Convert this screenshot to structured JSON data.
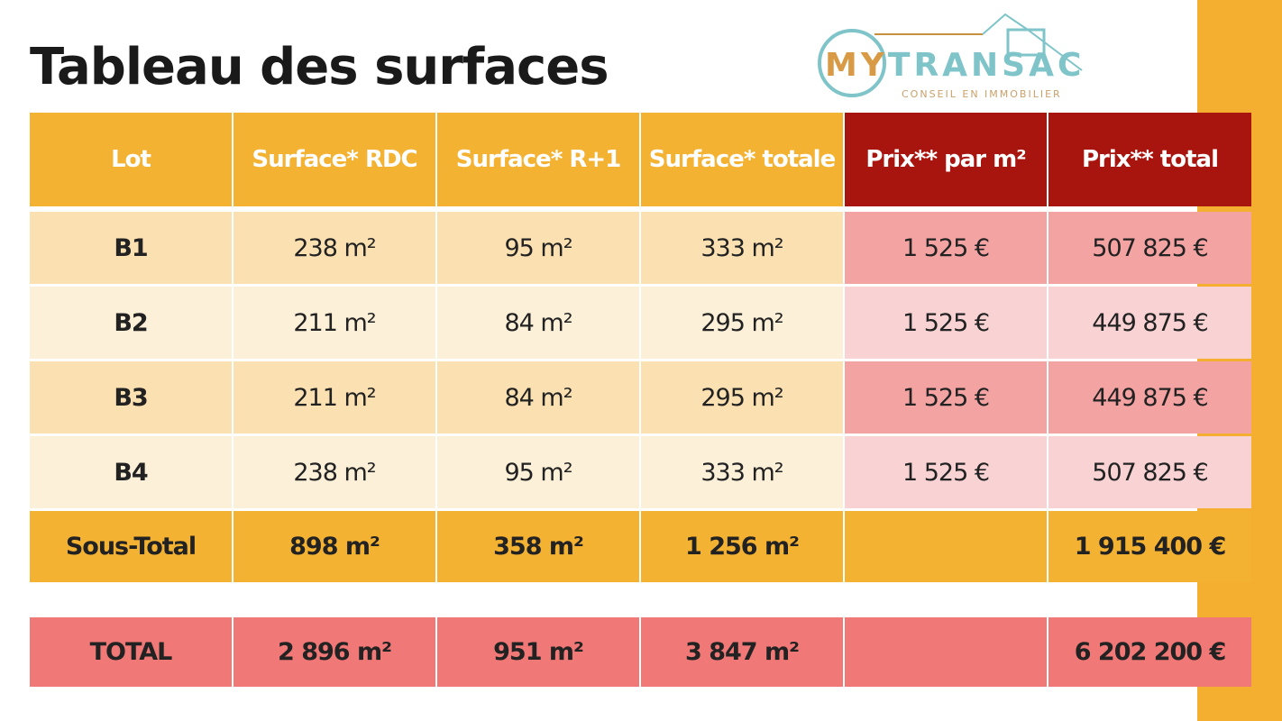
{
  "title": "Tableau des surfaces",
  "headers": [
    "Lot",
    "Surface* RDC",
    "Surface* R+1",
    "Surface* totale",
    "Prix** par m²",
    "Prix** total"
  ],
  "rows": [
    [
      "B1",
      "238 m²",
      "95 m²",
      "333 m²",
      "1 525 €",
      "507 825 €"
    ],
    [
      "B2",
      "211 m²",
      "84 m²",
      "295 m²",
      "1 525 €",
      "449 875 €"
    ],
    [
      "B3",
      "211 m²",
      "84 m²",
      "295 m²",
      "1 525 €",
      "449 875 €"
    ],
    [
      "B4",
      "238 m²",
      "95 m²",
      "333 m²",
      "1 525 €",
      "507 825 €"
    ]
  ],
  "subtotal": [
    "Sous-Total",
    "898 m²",
    "358 m²",
    "1 256 m²",
    "",
    "1 915 400 €"
  ],
  "total": [
    "TOTAL",
    "2 896 m²",
    "951 m²",
    "3 847 m²",
    "",
    "6 202 200 €"
  ],
  "watermark": {
    "brand_a": "MY",
    "brand_b": "TRANSAC",
    "tagline": "CONSEIL EN IMMOBILIER"
  },
  "colors": {
    "orange": "#F4B233",
    "red": "#A8150F",
    "total": "#F07876"
  }
}
